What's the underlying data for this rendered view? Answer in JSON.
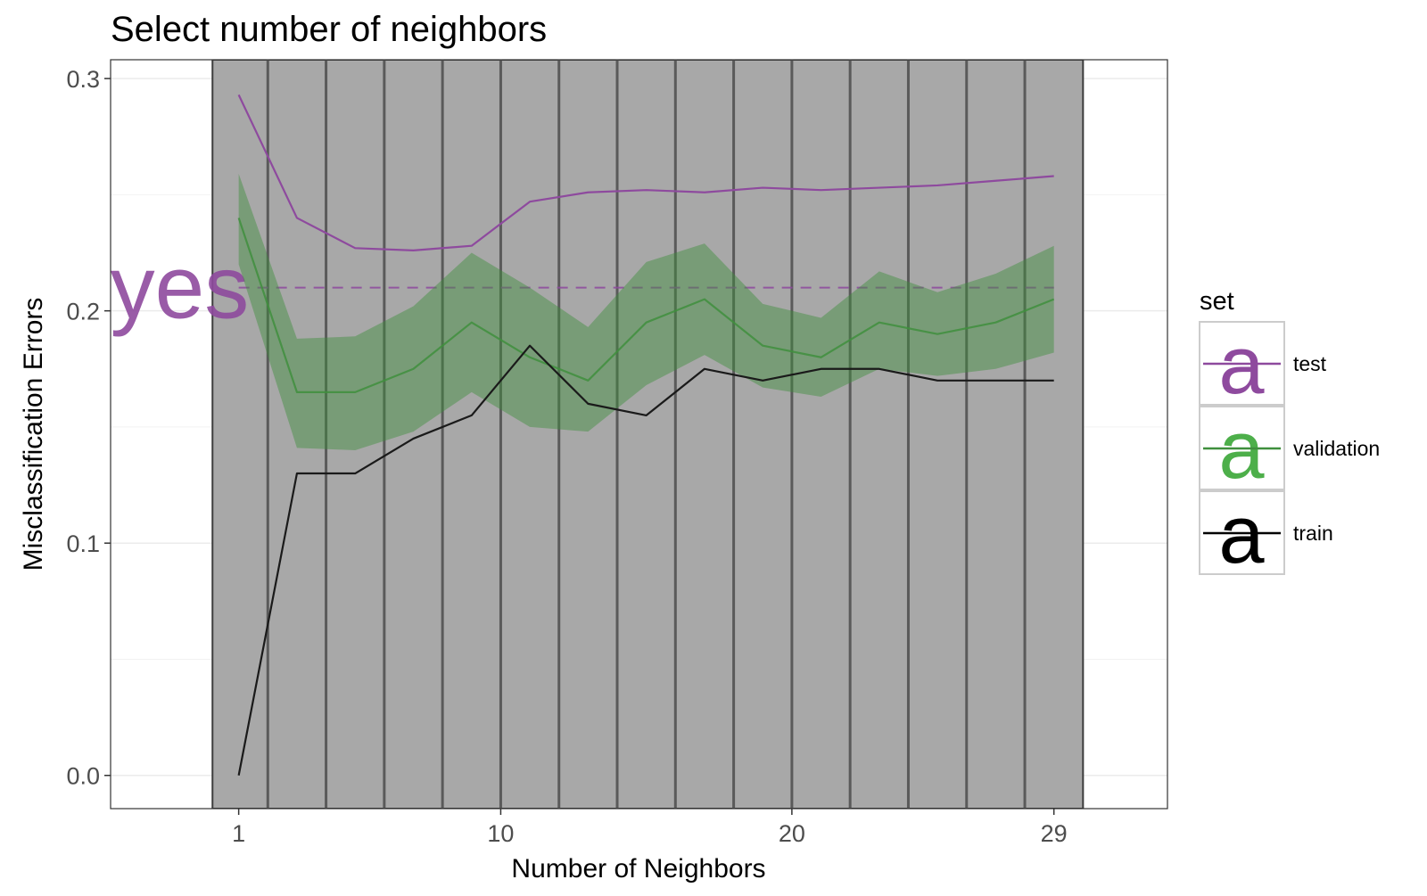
{
  "chart_data": {
    "type": "line",
    "title": "Select number of neighbors",
    "xlabel": "Number of Neighbors",
    "ylabel": "Misclassification Errors",
    "xlim": [
      -3.4,
      32.9
    ],
    "ylim": [
      -0.0143,
      0.3081
    ],
    "x_ticks": [
      1,
      10,
      20,
      29
    ],
    "y_ticks": [
      0.0,
      0.1,
      0.2,
      0.3
    ],
    "y_tick_labels": [
      "0.0",
      "0.1",
      "0.2",
      "0.3"
    ],
    "grid": true,
    "x": [
      1,
      3,
      5,
      7,
      9,
      11,
      13,
      15,
      17,
      19,
      21,
      23,
      25,
      27,
      29
    ],
    "vertical_lines": [
      2,
      4,
      6,
      8,
      10,
      12,
      14,
      16,
      18,
      20,
      22,
      24,
      26,
      28
    ],
    "shaded_region": [
      0.1,
      30
    ],
    "series": [
      {
        "name": "test",
        "color": "#8e4a9e",
        "values": [
          0.293,
          0.24,
          0.227,
          0.226,
          0.228,
          0.247,
          0.251,
          0.252,
          0.251,
          0.253,
          0.252,
          0.253,
          0.254,
          0.256,
          0.258
        ]
      },
      {
        "name": "validation",
        "color": "#4daf4a",
        "values": [
          0.24,
          0.165,
          0.165,
          0.175,
          0.195,
          0.18,
          0.17,
          0.195,
          0.205,
          0.185,
          0.18,
          0.195,
          0.19,
          0.195,
          0.205
        ],
        "ribbon_lower": [
          0.22,
          0.141,
          0.14,
          0.148,
          0.165,
          0.15,
          0.148,
          0.168,
          0.181,
          0.167,
          0.163,
          0.175,
          0.172,
          0.175,
          0.182
        ],
        "ribbon_upper": [
          0.259,
          0.188,
          0.189,
          0.202,
          0.225,
          0.21,
          0.193,
          0.221,
          0.229,
          0.203,
          0.197,
          0.217,
          0.208,
          0.216,
          0.228
        ]
      },
      {
        "name": "train",
        "color": "#000000",
        "values": [
          0.0,
          0.13,
          0.13,
          0.145,
          0.155,
          0.185,
          0.16,
          0.155,
          0.175,
          0.17,
          0.175,
          0.175,
          0.17,
          0.17,
          0.17
        ]
      }
    ],
    "reference_line": {
      "label": "Bayes",
      "y": 0.21,
      "color": "#8e4a9e",
      "style": "dashed"
    },
    "legend": {
      "title": "set",
      "placement": "right",
      "key_glyph": "a",
      "items": [
        {
          "label": "test",
          "color": "#8e4a9e"
        },
        {
          "label": "validation",
          "color": "#4daf4a"
        },
        {
          "label": "train",
          "color": "#000000"
        }
      ]
    }
  }
}
